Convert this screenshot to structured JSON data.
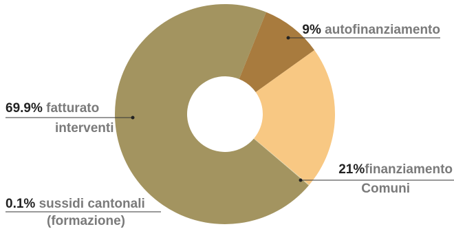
{
  "chart_data": {
    "type": "pie",
    "title": "",
    "slices": [
      {
        "label": "autofinanziamento",
        "value": 9,
        "value_label": "9%",
        "color": "#a87b3e"
      },
      {
        "label": "finanziamento Comuni",
        "value": 21,
        "value_label": "21%",
        "color": "#f8c883"
      },
      {
        "label": "sussidi cantonali (formazione)",
        "value": 0.1,
        "value_label": "0.1%",
        "color": "#e2d7ae"
      },
      {
        "label": "fatturato interventi",
        "value": 69.9,
        "value_label": "69.9%",
        "color": "#a39460"
      }
    ]
  },
  "labels": {
    "auto": {
      "pct": "9%",
      "line1": "autofinanziamento"
    },
    "comuni": {
      "pct": "21%",
      "line1": "finanziamento",
      "line2": "Comuni"
    },
    "sussidi": {
      "pct": "0.1%",
      "line1": "sussidi cantonali",
      "line2": "(formazione)"
    },
    "fatturato": {
      "pct": "69.9%",
      "line1": "fatturato",
      "line2": "interventi"
    }
  }
}
